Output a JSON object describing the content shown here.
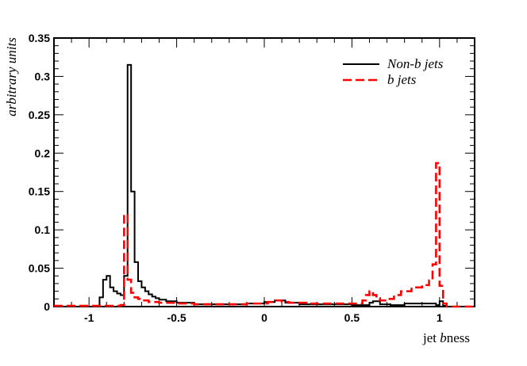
{
  "chart_data": {
    "type": "line",
    "chart_style": "step histogram",
    "xlabel": "jet bness",
    "xlabel_plain": "jet ",
    "xlabel_italic": "b",
    "xlabel_suffix": "ness",
    "ylabel": "arbitrary units",
    "xlim": [
      -1.2,
      1.2
    ],
    "ylim": [
      0,
      0.35
    ],
    "xticks": [
      -1,
      -0.5,
      0,
      0.5,
      1
    ],
    "xtick_labels": [
      "-1",
      "-0.5",
      "0",
      "0.5",
      "1"
    ],
    "yticks": [
      0,
      0.05,
      0.1,
      0.15,
      0.2,
      0.25,
      0.3,
      0.35
    ],
    "ytick_labels": [
      "0",
      "0.05",
      "0.1",
      "0.15",
      "0.2",
      "0.25",
      "0.3",
      "0.35"
    ],
    "legend_position": "top-right",
    "grid": false,
    "series": [
      {
        "name": "Non-b jets",
        "color": "#000000",
        "dash": "solid",
        "bins": [
          [
            -1.2,
            -0.94,
            0.0
          ],
          [
            -0.94,
            -0.92,
            0.012
          ],
          [
            -0.92,
            -0.9,
            0.035
          ],
          [
            -0.9,
            -0.88,
            0.04
          ],
          [
            -0.88,
            -0.86,
            0.025
          ],
          [
            -0.86,
            -0.84,
            0.02
          ],
          [
            -0.84,
            -0.82,
            0.017
          ],
          [
            -0.82,
            -0.8,
            0.015
          ],
          [
            -0.8,
            -0.78,
            0.04
          ],
          [
            -0.78,
            -0.76,
            0.315
          ],
          [
            -0.76,
            -0.74,
            0.15
          ],
          [
            -0.74,
            -0.72,
            0.058
          ],
          [
            -0.72,
            -0.7,
            0.033
          ],
          [
            -0.7,
            -0.68,
            0.025
          ],
          [
            -0.68,
            -0.66,
            0.02
          ],
          [
            -0.66,
            -0.64,
            0.016
          ],
          [
            -0.64,
            -0.62,
            0.013
          ],
          [
            -0.62,
            -0.6,
            0.011
          ],
          [
            -0.6,
            -0.56,
            0.009
          ],
          [
            -0.56,
            -0.5,
            0.007
          ],
          [
            -0.5,
            -0.4,
            0.005
          ],
          [
            -0.4,
            -0.1,
            0.003
          ],
          [
            -0.1,
            0.0,
            0.004
          ],
          [
            0.0,
            0.06,
            0.006
          ],
          [
            0.06,
            0.12,
            0.008
          ],
          [
            0.12,
            0.2,
            0.005
          ],
          [
            0.2,
            0.5,
            0.003
          ],
          [
            0.5,
            0.6,
            0.002
          ],
          [
            0.6,
            0.62,
            0.005
          ],
          [
            0.62,
            0.66,
            0.007
          ],
          [
            0.66,
            0.72,
            0.003
          ],
          [
            0.72,
            0.8,
            0.002
          ],
          [
            0.8,
            0.98,
            0.004
          ],
          [
            0.98,
            1.0,
            0.002
          ],
          [
            1.0,
            1.02,
            0.007
          ],
          [
            1.02,
            1.04,
            0.001
          ],
          [
            1.04,
            1.2,
            0.0
          ]
        ]
      },
      {
        "name": "b jets",
        "color": "#ff0000",
        "dash": "dashed",
        "bins": [
          [
            -1.2,
            -0.82,
            0.001
          ],
          [
            -0.82,
            -0.8,
            0.002
          ],
          [
            -0.8,
            -0.78,
            0.12
          ],
          [
            -0.78,
            -0.76,
            0.035
          ],
          [
            -0.76,
            -0.74,
            0.018
          ],
          [
            -0.74,
            -0.72,
            0.012
          ],
          [
            -0.72,
            -0.7,
            0.01
          ],
          [
            -0.7,
            -0.66,
            0.008
          ],
          [
            -0.66,
            -0.6,
            0.006
          ],
          [
            -0.6,
            -0.5,
            0.005
          ],
          [
            -0.5,
            -0.4,
            0.004
          ],
          [
            -0.4,
            -0.1,
            0.003
          ],
          [
            -0.1,
            0.02,
            0.004
          ],
          [
            0.02,
            0.06,
            0.006
          ],
          [
            0.06,
            0.1,
            0.008
          ],
          [
            0.1,
            0.14,
            0.006
          ],
          [
            0.14,
            0.24,
            0.005
          ],
          [
            0.24,
            0.56,
            0.004
          ],
          [
            0.56,
            0.58,
            0.008
          ],
          [
            0.58,
            0.6,
            0.015
          ],
          [
            0.6,
            0.62,
            0.02
          ],
          [
            0.62,
            0.64,
            0.015
          ],
          [
            0.64,
            0.66,
            0.011
          ],
          [
            0.66,
            0.7,
            0.008
          ],
          [
            0.7,
            0.74,
            0.01
          ],
          [
            0.74,
            0.78,
            0.015
          ],
          [
            0.78,
            0.84,
            0.02
          ],
          [
            0.84,
            0.9,
            0.025
          ],
          [
            0.9,
            0.94,
            0.028
          ],
          [
            0.94,
            0.96,
            0.034
          ],
          [
            0.96,
            0.98,
            0.055
          ],
          [
            0.98,
            1.0,
            0.187
          ],
          [
            1.0,
            1.02,
            0.027
          ],
          [
            1.02,
            1.04,
            0.004
          ],
          [
            1.04,
            1.2,
            0.0
          ]
        ]
      }
    ]
  }
}
